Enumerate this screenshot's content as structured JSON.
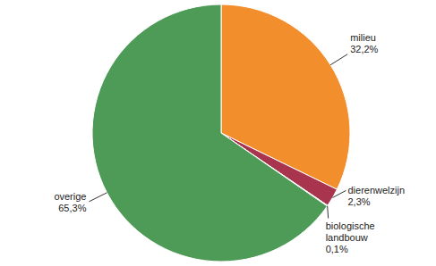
{
  "chart_data": {
    "type": "pie",
    "categories": [
      "milieu",
      "dierenwelzijn",
      "biologische landbouw",
      "overige"
    ],
    "values": [
      32.2,
      2.3,
      0.1,
      65.3
    ],
    "value_labels": [
      "32,2%",
      "2,3%",
      "0,1%",
      "65,3%"
    ],
    "colors": [
      "#f28e2b",
      "#a8344e",
      "#e8e8e8",
      "#4e9a57"
    ],
    "data_labels": true
  }
}
